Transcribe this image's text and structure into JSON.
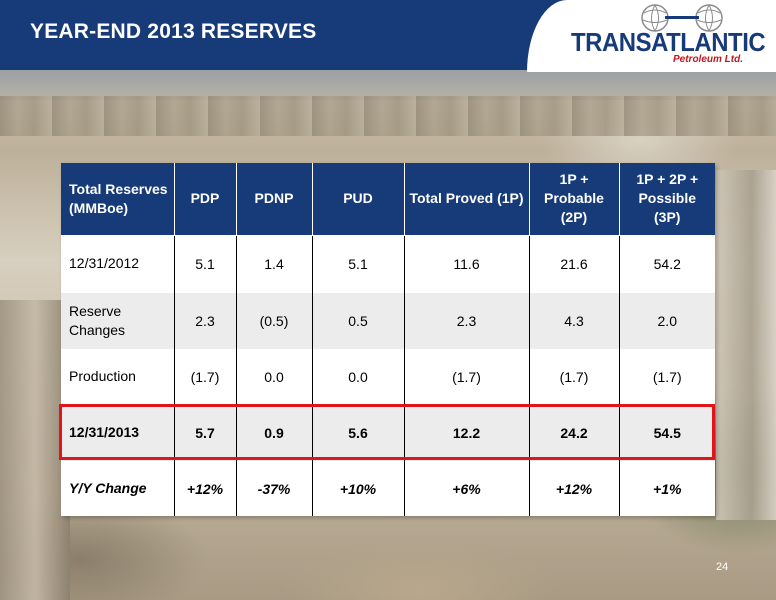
{
  "header": {
    "title": "YEAR-END 2013 RESERVES"
  },
  "logo": {
    "wordmark": "TRANSATLANTIC",
    "subtitle": "Petroleum Ltd.",
    "colors": {
      "primary": "#173b78",
      "accent": "#c5161d"
    }
  },
  "table": {
    "headers": [
      "Total Reserves (MMBoe)",
      "PDP",
      "PDNP",
      "PUD",
      "Total Proved (1P)",
      "1P + Probable (2P)",
      "1P + 2P + Possible (3P)"
    ],
    "rows": [
      [
        "12/31/2012",
        "5.1",
        "1.4",
        "5.1",
        "11.6",
        "21.6",
        "54.2"
      ],
      [
        "Reserve Changes",
        "2.3",
        "(0.5)",
        "0.5",
        "2.3",
        "4.3",
        "2.0"
      ],
      [
        "Production",
        "(1.7)",
        "0.0",
        "0.0",
        "(1.7)",
        "(1.7)",
        "(1.7)"
      ],
      [
        "12/31/2013",
        "5.7",
        "0.9",
        "5.6",
        "12.2",
        "24.2",
        "54.5"
      ],
      [
        "Y/Y Change",
        "+12%",
        "-37%",
        "+10%",
        "+6%",
        "+12%",
        "+1%"
      ]
    ],
    "highlight_color": "#e0141b"
  },
  "footer": {
    "page_number": "24"
  }
}
